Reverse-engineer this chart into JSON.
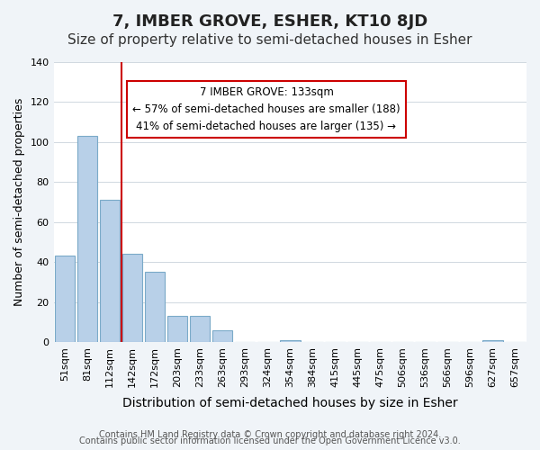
{
  "title": "7, IMBER GROVE, ESHER, KT10 8JD",
  "subtitle": "Size of property relative to semi-detached houses in Esher",
  "xlabel": "Distribution of semi-detached houses by size in Esher",
  "ylabel": "Number of semi-detached properties",
  "categories": [
    "51sqm",
    "81sqm",
    "112sqm",
    "142sqm",
    "172sqm",
    "203sqm",
    "233sqm",
    "263sqm",
    "293sqm",
    "324sqm",
    "354sqm",
    "384sqm",
    "415sqm",
    "445sqm",
    "475sqm",
    "506sqm",
    "536sqm",
    "566sqm",
    "596sqm",
    "627sqm",
    "657sqm"
  ],
  "values": [
    43,
    103,
    71,
    44,
    35,
    13,
    13,
    6,
    0,
    0,
    1,
    0,
    0,
    0,
    0,
    0,
    0,
    0,
    0,
    1,
    0
  ],
  "bar_color": "#b8d0e8",
  "bar_edge_color": "#7aaac8",
  "vline_x": 3,
  "vline_color": "#cc0000",
  "annotation_title": "7 IMBER GROVE: 133sqm",
  "annotation_line1": "← 57% of semi-detached houses are smaller (188)",
  "annotation_line2": "41% of semi-detached houses are larger (135) →",
  "annotation_box_color": "#ffffff",
  "annotation_box_edge": "#cc0000",
  "ylim": [
    0,
    140
  ],
  "footnote1": "Contains HM Land Registry data © Crown copyright and database right 2024.",
  "footnote2": "Contains public sector information licensed under the Open Government Licence v3.0.",
  "background_color": "#f0f4f8",
  "plot_background_color": "#ffffff",
  "title_fontsize": 13,
  "subtitle_fontsize": 11,
  "xlabel_fontsize": 10,
  "ylabel_fontsize": 9,
  "tick_fontsize": 8,
  "footnote_fontsize": 7
}
